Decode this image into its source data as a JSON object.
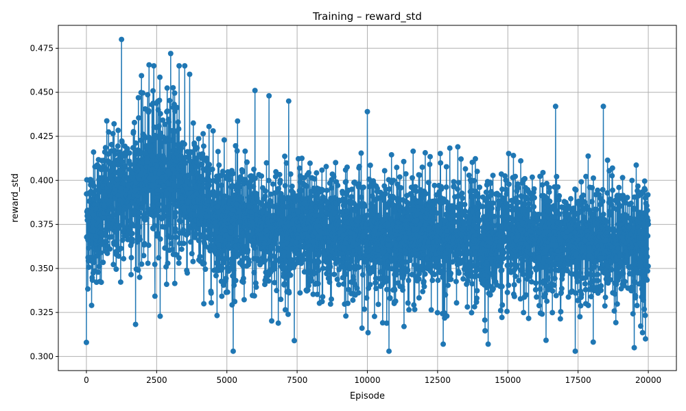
{
  "chart_data": {
    "type": "line",
    "title": "Training – reward_std",
    "xlabel": "Episode",
    "ylabel": "reward_std",
    "xlim": [
      -1000,
      21000
    ],
    "ylim": [
      0.292,
      0.488
    ],
    "xticks": [
      0,
      2500,
      5000,
      7500,
      10000,
      12500,
      15000,
      17500,
      20000
    ],
    "yticks": [
      0.3,
      0.325,
      0.35,
      0.375,
      0.4,
      0.425,
      0.45,
      0.475
    ],
    "xtick_labels": [
      "0",
      "2500",
      "5000",
      "7500",
      "10000",
      "12500",
      "15000",
      "17500",
      "20000"
    ],
    "ytick_labels": [
      "0.300",
      "0.325",
      "0.350",
      "0.375",
      "0.400",
      "0.425",
      "0.450",
      "0.475"
    ],
    "grid": true,
    "marker": "circle",
    "color": "#1f77b4",
    "series": [
      {
        "x_start": 0,
        "x_end": 20000,
        "n_points": 20001,
        "trend": [
          [
            0,
            0.375
          ],
          [
            1000,
            0.388
          ],
          [
            2000,
            0.398
          ],
          [
            2500,
            0.404
          ],
          [
            3000,
            0.401
          ],
          [
            3500,
            0.394
          ],
          [
            4000,
            0.385
          ],
          [
            5000,
            0.376
          ],
          [
            6000,
            0.372
          ],
          [
            8000,
            0.37
          ],
          [
            10000,
            0.369
          ],
          [
            12500,
            0.368
          ],
          [
            15000,
            0.366
          ],
          [
            17500,
            0.366
          ],
          [
            20000,
            0.364
          ]
        ],
        "spread": [
          [
            0,
            0.03
          ],
          [
            2500,
            0.04
          ],
          [
            4000,
            0.034
          ],
          [
            6000,
            0.03
          ],
          [
            20000,
            0.028
          ]
        ],
        "notable_points": [
          [
            0,
            0.308
          ],
          [
            1250,
            0.48
          ],
          [
            3000,
            0.472
          ],
          [
            2400,
            0.465
          ],
          [
            3300,
            0.465
          ],
          [
            3500,
            0.465
          ],
          [
            6000,
            0.451
          ],
          [
            6500,
            0.448
          ],
          [
            7200,
            0.445
          ],
          [
            10000,
            0.439
          ],
          [
            12700,
            0.307
          ],
          [
            14300,
            0.307
          ],
          [
            16700,
            0.442
          ],
          [
            17400,
            0.303
          ],
          [
            18400,
            0.442
          ],
          [
            19500,
            0.305
          ],
          [
            7400,
            0.309
          ],
          [
            19900,
            0.31
          ]
        ]
      }
    ]
  }
}
